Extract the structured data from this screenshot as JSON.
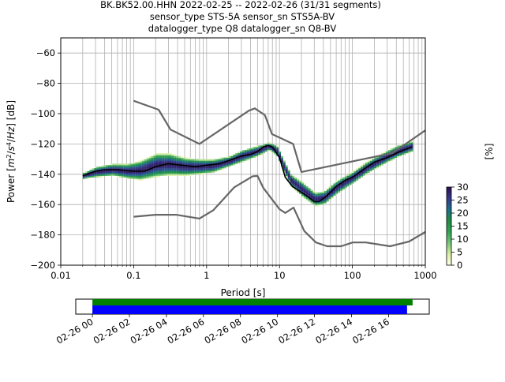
{
  "title_lines": [
    "BK.BK52.00.HHN   2022-02-25 -- 2022-02-26  (31/31 segments)",
    "sensor_type STS-5A sensor_sn STS5A-BV",
    "datalogger_type Q8 datalogger_sn Q8-BV"
  ],
  "chart_data": {
    "type": "heatmap",
    "xlabel": "Period [s]",
    "xscale": "log",
    "xlim": [
      0.01,
      1000
    ],
    "xticks": [
      "0.01",
      "0.1",
      "1",
      "10",
      "100",
      "1000"
    ],
    "ylim": [
      -200,
      -50
    ],
    "yticks": [
      "−60",
      "−80",
      "−100",
      "−120",
      "−140",
      "−160",
      "−180",
      "−200"
    ],
    "ytick_values": [
      -60,
      -80,
      -100,
      -120,
      -140,
      -160,
      -180,
      -200
    ],
    "grid": true,
    "colorbar": {
      "label": "[%]",
      "ticks": [
        "0",
        "5",
        "10",
        "15",
        "20",
        "25",
        "30"
      ],
      "tick_values": [
        0,
        5,
        10,
        15,
        20,
        25,
        30
      ],
      "range": [
        0,
        30
      ],
      "colors": [
        "#ffffe5",
        "#d9f0a3",
        "#78c679",
        "#31a354",
        "#238b45",
        "#1d6f8a",
        "#35398a",
        "#2b0f4d"
      ]
    },
    "mean_line": {
      "color": "#000000",
      "points": [
        [
          0.02,
          -141
        ],
        [
          0.03,
          -138
        ],
        [
          0.04,
          -137
        ],
        [
          0.06,
          -137
        ],
        [
          0.1,
          -138
        ],
        [
          0.14,
          -138
        ],
        [
          0.2,
          -135
        ],
        [
          0.3,
          -133
        ],
        [
          0.45,
          -134
        ],
        [
          0.7,
          -135
        ],
        [
          1.0,
          -134
        ],
        [
          1.5,
          -133
        ],
        [
          2.0,
          -131
        ],
        [
          3.0,
          -128
        ],
        [
          4.0,
          -127
        ],
        [
          5.0,
          -125
        ],
        [
          6.0,
          -122
        ],
        [
          7.0,
          -121
        ],
        [
          8.0,
          -122
        ],
        [
          10.0,
          -129
        ],
        [
          12.0,
          -142
        ],
        [
          15.0,
          -148
        ],
        [
          20.0,
          -152
        ],
        [
          25.0,
          -155
        ],
        [
          30.0,
          -158
        ],
        [
          35.0,
          -158
        ],
        [
          45.0,
          -154
        ],
        [
          60.0,
          -148
        ],
        [
          80.0,
          -144
        ],
        [
          100.0,
          -142
        ],
        [
          150.0,
          -136
        ],
        [
          200.0,
          -132
        ],
        [
          300.0,
          -129
        ],
        [
          450.0,
          -125
        ],
        [
          650.0,
          -122
        ]
      ]
    },
    "noise_models": [
      {
        "name": "high_noise_model",
        "color": "#666666",
        "points": [
          [
            0.1,
            -91.5
          ],
          [
            0.22,
            -97.4
          ],
          [
            0.32,
            -110.5
          ],
          [
            0.8,
            -120
          ],
          [
            3.8,
            -98
          ],
          [
            4.6,
            -96.5
          ],
          [
            6.3,
            -101
          ],
          [
            7.9,
            -113.5
          ],
          [
            15.4,
            -120
          ],
          [
            20,
            -138.5
          ],
          [
            354.8,
            -126
          ],
          [
            1000,
            -111
          ]
        ]
      },
      {
        "name": "low_noise_model",
        "color": "#666666",
        "points": [
          [
            0.1,
            -168
          ],
          [
            0.2,
            -166.7
          ],
          [
            0.38,
            -166.7
          ],
          [
            0.8,
            -169.2
          ],
          [
            1.24,
            -163.7
          ],
          [
            2.4,
            -148.6
          ],
          [
            4.3,
            -141.3
          ],
          [
            5,
            -141.1
          ],
          [
            6,
            -149
          ],
          [
            10,
            -163
          ],
          [
            12,
            -165.5
          ],
          [
            15.6,
            -162
          ],
          [
            21.9,
            -177.5
          ],
          [
            31.6,
            -185
          ],
          [
            45,
            -187.5
          ],
          [
            70,
            -187.5
          ],
          [
            101,
            -185
          ],
          [
            154,
            -185
          ],
          [
            328,
            -187.5
          ],
          [
            600,
            -184.4
          ],
          [
            1000,
            -178
          ]
        ]
      }
    ],
    "heatmap_band": [
      [
        0.02,
        -143,
        -139
      ],
      [
        0.03,
        -142,
        -135
      ],
      [
        0.05,
        -141,
        -133
      ],
      [
        0.08,
        -143,
        -133
      ],
      [
        0.12,
        -144,
        -131
      ],
      [
        0.2,
        -142,
        -126
      ],
      [
        0.3,
        -141,
        -126
      ],
      [
        0.5,
        -141,
        -129
      ],
      [
        0.8,
        -140,
        -130
      ],
      [
        1.2,
        -139,
        -130
      ],
      [
        2,
        -135,
        -128
      ],
      [
        3,
        -132,
        -124
      ],
      [
        5,
        -128,
        -121
      ],
      [
        7,
        -124,
        -119
      ],
      [
        9,
        -128,
        -121
      ],
      [
        11,
        -138,
        -130
      ],
      [
        14,
        -148,
        -140
      ],
      [
        20,
        -155,
        -145
      ],
      [
        30,
        -161,
        -152
      ],
      [
        40,
        -160,
        -151
      ],
      [
        60,
        -153,
        -144
      ],
      [
        100,
        -146,
        -138
      ],
      [
        150,
        -140,
        -132
      ],
      [
        250,
        -134,
        -126
      ],
      [
        400,
        -129,
        -121
      ],
      [
        650,
        -125,
        -118
      ]
    ],
    "timeline": {
      "tick_labels": [
        "02-26 00",
        "02-26 02",
        "02-26 04",
        "02-26 06",
        "02-26 08",
        "02-26 10",
        "02-26 12",
        "02-26 14",
        "02-26 16"
      ],
      "tick_hours": [
        0,
        2,
        4,
        6,
        8,
        10,
        12,
        14,
        16
      ],
      "range_hours": [
        -0.9,
        18.2
      ],
      "bars": [
        {
          "color": "#008000",
          "start_hours": 0,
          "end_hours": 17.3
        },
        {
          "color": "#0000ff",
          "start_hours": 0,
          "end_hours": 17.0
        }
      ]
    }
  }
}
